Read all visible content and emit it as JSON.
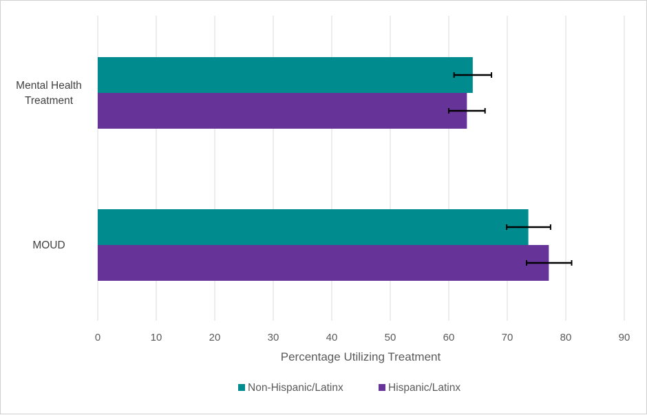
{
  "chart_data": {
    "type": "bar",
    "orientation": "horizontal",
    "categories": [
      "Mental Health Treatment",
      "MOUD"
    ],
    "category_lines": [
      [
        "Mental Health",
        "Treatment"
      ],
      [
        "MOUD"
      ]
    ],
    "series": [
      {
        "name": "Non-Hispanic/Latinx",
        "color": "#008B8E",
        "values": [
          64.1,
          73.6
        ],
        "error_low": [
          60.9,
          69.9
        ],
        "error_high": [
          67.3,
          77.4
        ]
      },
      {
        "name": "Hispanic/Latinx",
        "color": "#663399",
        "values": [
          63.1,
          77.1
        ],
        "error_low": [
          60.0,
          73.3
        ],
        "error_high": [
          66.2,
          81.0
        ]
      }
    ],
    "xlabel": "Percentage Utilizing Treatment",
    "ylabel": "",
    "xlim": [
      0,
      90
    ],
    "xticks": [
      0,
      10,
      20,
      30,
      40,
      50,
      60,
      70,
      80,
      90
    ],
    "grid": "vertical",
    "legend": "bottom"
  }
}
